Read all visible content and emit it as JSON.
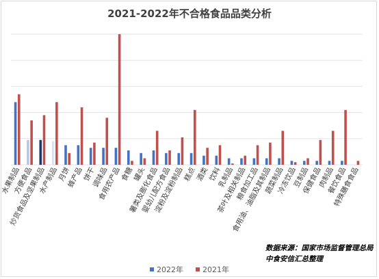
{
  "chart_data": {
    "type": "bar",
    "title": "2021-2022年不合格食品品类分析",
    "categories": [
      "水果制品",
      "方便食品",
      "炒货食品及坚果制品",
      "水产制品",
      "月饼",
      "蜂产品",
      "饼干",
      "调味品",
      "食用农产品",
      "食糖",
      "罐头",
      "薯类及膨化食品",
      "婴幼儿配方食品",
      "淀粉及淀粉制品",
      "糕点",
      "酒类",
      "饮料",
      "乳制品",
      "茶叶及相关制品",
      "粮食加工品",
      "食用油、油脂及其制品",
      "蔬菜制品",
      "冷冻饮品",
      "豆制品",
      "保健食品",
      "肉制品",
      "餐饮食品",
      "特殊膳食食品"
    ],
    "series": [
      {
        "name": "2022年",
        "values": [
          48,
          19,
          19,
          18,
          15,
          15,
          13,
          13,
          13,
          11,
          9,
          11,
          9,
          9,
          9,
          7,
          7,
          5,
          5,
          5,
          5,
          5,
          3,
          3,
          3,
          3,
          3,
          0
        ]
      },
      {
        "name": "2021年",
        "values": [
          54,
          34,
          38,
          48,
          9,
          44,
          17,
          36,
          100,
          3,
          5,
          26,
          11,
          21,
          42,
          13,
          15,
          1,
          7,
          15,
          17,
          26,
          2,
          5,
          19,
          26,
          42,
          3
        ]
      }
    ],
    "bar_colors_2022": [
      "#4472c4",
      "#b4c7e7",
      "#1f3864",
      "#dae3f3",
      "#4472c4",
      "#4472c4",
      "#4472c4",
      "#4472c4",
      "#4472c4",
      "#4472c4",
      "#4472c4",
      "#4472c4",
      "#4472c4",
      "#4472c4",
      "#4472c4",
      "#4472c4",
      "#4472c4",
      "#4472c4",
      "#4472c4",
      "#4472c4",
      "#4472c4",
      "#4472c4",
      "#4472c4",
      "#4472c4",
      "#4472c4",
      "#4472c4",
      "#4472c4",
      "#4472c4"
    ],
    "color_2021": "#c0504d",
    "ylim": [
      0,
      100
    ],
    "grid": true,
    "legend_position": "bottom"
  },
  "source_line1": "数据来源：国家市场监督管理总局",
  "source_line2": "中食安信汇总整理"
}
